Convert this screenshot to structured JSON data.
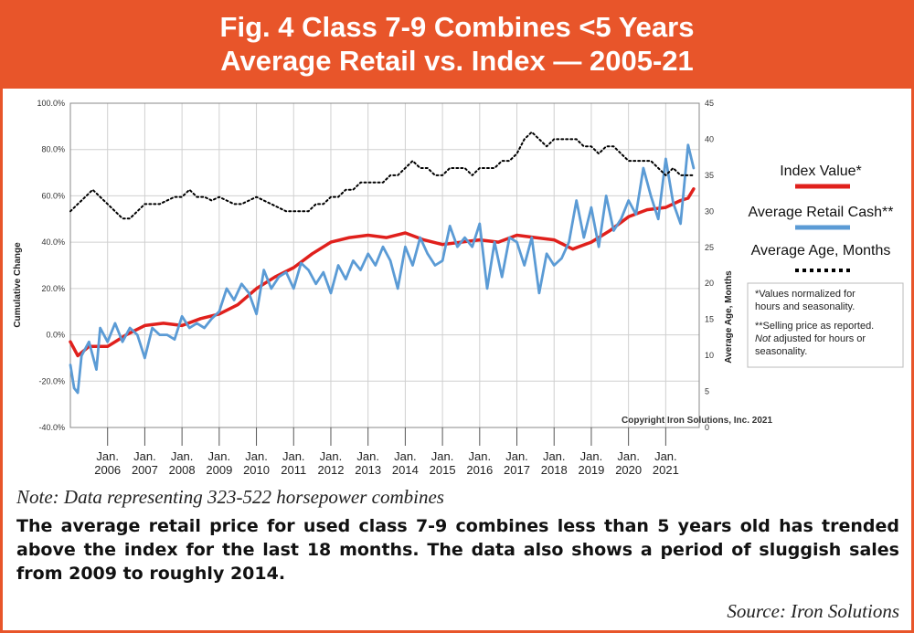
{
  "header": {
    "line1": "Fig. 4 Class 7-9 Combines <5 Years",
    "line2": "Average Retail vs. Index — 2005-21"
  },
  "note": "Note: Data representing 323-522 horsepower combines",
  "description": "The average retail price for used class 7-9 combines less than 5 years old has trended above the index for the last 18 months. The data also shows a period of sluggish sales from 2009 to roughly 2014.",
  "source": "Source: Iron Solutions",
  "colors": {
    "accent": "#e8552a",
    "index": "#e0201c",
    "retail": "#5b9bd5",
    "age": "#000000"
  },
  "chart_data": {
    "type": "line",
    "title": "",
    "ylabel": "Cumulative Change",
    "y2label": "Average Age, Months",
    "ylim": [
      -40,
      100
    ],
    "y2lim": [
      0,
      45
    ],
    "yticks": [
      "100.0%",
      "80.0%",
      "60.0%",
      "40.0%",
      "20.0%",
      "0.0%",
      "-20.0%",
      "-40.0%"
    ],
    "y2ticks": [
      "45",
      "40",
      "35",
      "30",
      "25",
      "20",
      "15",
      "10",
      "5",
      "0"
    ],
    "xlim": [
      2005.0,
      2021.9
    ],
    "xticks": [
      {
        "top": "Jan.",
        "bottom": "2006",
        "x": 2006
      },
      {
        "top": "Jan.",
        "bottom": "2007",
        "x": 2007
      },
      {
        "top": "Jan.",
        "bottom": "2008",
        "x": 2008
      },
      {
        "top": "Jan.",
        "bottom": "2009",
        "x": 2009
      },
      {
        "top": "Jan.",
        "bottom": "2010",
        "x": 2010
      },
      {
        "top": "Jan.",
        "bottom": "2011",
        "x": 2011
      },
      {
        "top": "Jan.",
        "bottom": "2012",
        "x": 2012
      },
      {
        "top": "Jan.",
        "bottom": "2013",
        "x": 2013
      },
      {
        "top": "Jan.",
        "bottom": "2014",
        "x": 2014
      },
      {
        "top": "Jan.",
        "bottom": "2015",
        "x": 2015
      },
      {
        "top": "Jan.",
        "bottom": "2016",
        "x": 2016
      },
      {
        "top": "Jan.",
        "bottom": "2017",
        "x": 2017
      },
      {
        "top": "Jan.",
        "bottom": "2018",
        "x": 2018
      },
      {
        "top": "Jan.",
        "bottom": "2019",
        "x": 2019
      },
      {
        "top": "Jan.",
        "bottom": "2020",
        "x": 2020
      },
      {
        "top": "Jan.",
        "bottom": "2021",
        "x": 2021
      }
    ],
    "grid": true,
    "copyright": "Copyright Iron Solutions, Inc. 2021",
    "series": [
      {
        "name": "Index Value*",
        "axis": "left",
        "x": [
          2005.0,
          2005.2,
          2005.5,
          2006.0,
          2006.5,
          2007.0,
          2007.5,
          2008.0,
          2008.5,
          2009.0,
          2009.5,
          2010.0,
          2010.5,
          2011.0,
          2011.5,
          2012.0,
          2012.5,
          2013.0,
          2013.5,
          2014.0,
          2014.5,
          2015.0,
          2015.5,
          2016.0,
          2016.5,
          2017.0,
          2017.5,
          2018.0,
          2018.5,
          2019.0,
          2019.5,
          2020.0,
          2020.5,
          2021.0,
          2021.4,
          2021.6,
          2021.75
        ],
        "values": [
          -3,
          -9,
          -5,
          -5,
          0,
          4,
          5,
          4,
          7,
          9,
          13,
          20,
          25,
          29,
          35,
          40,
          42,
          43,
          42,
          44,
          41,
          39,
          40,
          41,
          40,
          43,
          42,
          41,
          37,
          40,
          45,
          51,
          54,
          55,
          58,
          59,
          63
        ]
      },
      {
        "name": "Average Retail Cash**",
        "axis": "left",
        "x": [
          2005.0,
          2005.1,
          2005.2,
          2005.3,
          2005.5,
          2005.7,
          2005.8,
          2006.0,
          2006.2,
          2006.4,
          2006.6,
          2006.8,
          2007.0,
          2007.2,
          2007.4,
          2007.6,
          2007.8,
          2008.0,
          2008.2,
          2008.4,
          2008.6,
          2008.8,
          2009.0,
          2009.2,
          2009.4,
          2009.6,
          2009.8,
          2010.0,
          2010.2,
          2010.4,
          2010.6,
          2010.8,
          2011.0,
          2011.2,
          2011.4,
          2011.6,
          2011.8,
          2012.0,
          2012.2,
          2012.4,
          2012.6,
          2012.8,
          2013.0,
          2013.2,
          2013.4,
          2013.6,
          2013.8,
          2014.0,
          2014.2,
          2014.4,
          2014.6,
          2014.8,
          2015.0,
          2015.2,
          2015.4,
          2015.6,
          2015.8,
          2016.0,
          2016.2,
          2016.4,
          2016.6,
          2016.8,
          2017.0,
          2017.2,
          2017.4,
          2017.6,
          2017.8,
          2018.0,
          2018.2,
          2018.4,
          2018.6,
          2018.8,
          2019.0,
          2019.2,
          2019.4,
          2019.6,
          2019.8,
          2020.0,
          2020.2,
          2020.4,
          2020.6,
          2020.8,
          2021.0,
          2021.2,
          2021.4,
          2021.6,
          2021.75
        ],
        "values": [
          -13,
          -23,
          -25,
          -9,
          -3,
          -15,
          3,
          -3,
          5,
          -3,
          3,
          0,
          -10,
          3,
          0,
          0,
          -2,
          8,
          3,
          5,
          3,
          7,
          10,
          20,
          15,
          22,
          18,
          9,
          28,
          20,
          25,
          27,
          20,
          31,
          28,
          22,
          27,
          18,
          30,
          24,
          32,
          28,
          35,
          30,
          38,
          32,
          20,
          38,
          30,
          42,
          35,
          30,
          32,
          47,
          38,
          42,
          38,
          48,
          20,
          40,
          25,
          42,
          40,
          30,
          42,
          18,
          35,
          30,
          33,
          40,
          58,
          42,
          55,
          38,
          60,
          45,
          50,
          58,
          52,
          72,
          60,
          50,
          76,
          57,
          48,
          82,
          72
        ]
      },
      {
        "name": "Average Age, Months",
        "axis": "right",
        "x": [
          2005.0,
          2005.2,
          2005.4,
          2005.6,
          2005.8,
          2006.0,
          2006.2,
          2006.4,
          2006.6,
          2006.8,
          2007.0,
          2007.2,
          2007.4,
          2007.6,
          2007.8,
          2008.0,
          2008.2,
          2008.4,
          2008.6,
          2008.8,
          2009.0,
          2009.2,
          2009.4,
          2009.6,
          2009.8,
          2010.0,
          2010.2,
          2010.4,
          2010.6,
          2010.8,
          2011.0,
          2011.2,
          2011.4,
          2011.6,
          2011.8,
          2012.0,
          2012.2,
          2012.4,
          2012.6,
          2012.8,
          2013.0,
          2013.2,
          2013.4,
          2013.6,
          2013.8,
          2014.0,
          2014.2,
          2014.4,
          2014.6,
          2014.8,
          2015.0,
          2015.2,
          2015.4,
          2015.6,
          2015.8,
          2016.0,
          2016.2,
          2016.4,
          2016.6,
          2016.8,
          2017.0,
          2017.2,
          2017.4,
          2017.6,
          2017.8,
          2018.0,
          2018.2,
          2018.4,
          2018.6,
          2018.8,
          2019.0,
          2019.2,
          2019.4,
          2019.6,
          2019.8,
          2020.0,
          2020.2,
          2020.4,
          2020.6,
          2020.8,
          2021.0,
          2021.2,
          2021.4,
          2021.6,
          2021.75
        ],
        "values": [
          30,
          31,
          32,
          33,
          32,
          31,
          30,
          29,
          29,
          30,
          31,
          31,
          31,
          31.5,
          32,
          32,
          33,
          32,
          32,
          31.5,
          32,
          31.5,
          31,
          31,
          31.5,
          32,
          31.5,
          31,
          30.5,
          30,
          30,
          30,
          30,
          31,
          31,
          32,
          32,
          33,
          33,
          34,
          34,
          34,
          34,
          35,
          35,
          36,
          37,
          36,
          36,
          35,
          35,
          36,
          36,
          36,
          35,
          36,
          36,
          36,
          37,
          37,
          38,
          40,
          41,
          40,
          39,
          40,
          40,
          40,
          40,
          39,
          39,
          38,
          39,
          39,
          38,
          37,
          37,
          37,
          37,
          36,
          35,
          36,
          35,
          35,
          35
        ]
      }
    ],
    "legend": {
      "placement": "right"
    },
    "footnotes": [
      "*Values normalized for",
      "hours and seasonality.",
      "**Selling price as reported.",
      "Not",
      " adjusted for hours or",
      "seasonality."
    ]
  }
}
